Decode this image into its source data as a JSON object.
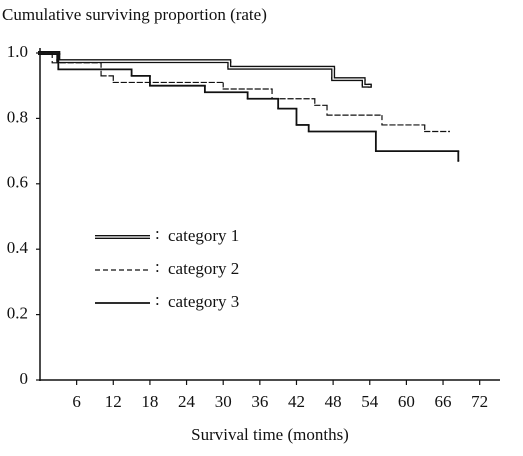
{
  "chart_data": {
    "type": "step",
    "y_title": "Cumulative surviving proportion (rate)",
    "x_title": "Survival time (months)",
    "xlim": [
      0,
      75
    ],
    "ylim": [
      0,
      1.02
    ],
    "xticks": [
      6,
      12,
      18,
      24,
      30,
      36,
      42,
      48,
      54,
      60,
      66,
      72
    ],
    "yticks": [
      0,
      0.2,
      0.4,
      0.6,
      0.8,
      {
        "value": 1,
        "label": "1.0"
      }
    ],
    "legend_separator": ":",
    "series": [
      {
        "name": "category 1",
        "color": "#111111",
        "line_style": "double",
        "x": [
          0,
          3,
          31,
          48,
          53,
          54
        ],
        "values": [
          1.0,
          0.975,
          0.955,
          0.92,
          0.9,
          0.9
        ]
      },
      {
        "name": "category 2",
        "color": "#111111",
        "line_style": "dashed",
        "x": [
          0,
          2,
          10,
          12,
          30,
          38,
          45,
          47,
          56,
          63,
          67
        ],
        "values": [
          1.0,
          0.97,
          0.93,
          0.91,
          0.89,
          0.86,
          0.84,
          0.81,
          0.78,
          0.76,
          0.76
        ]
      },
      {
        "name": "category 3",
        "color": "#111111",
        "line_style": "solid",
        "x": [
          0,
          3,
          15,
          18,
          27,
          34,
          39,
          42,
          44,
          55,
          68.5
        ],
        "values": [
          1.0,
          0.95,
          0.93,
          0.9,
          0.88,
          0.86,
          0.83,
          0.78,
          0.76,
          0.7,
          0.67
        ]
      }
    ]
  }
}
